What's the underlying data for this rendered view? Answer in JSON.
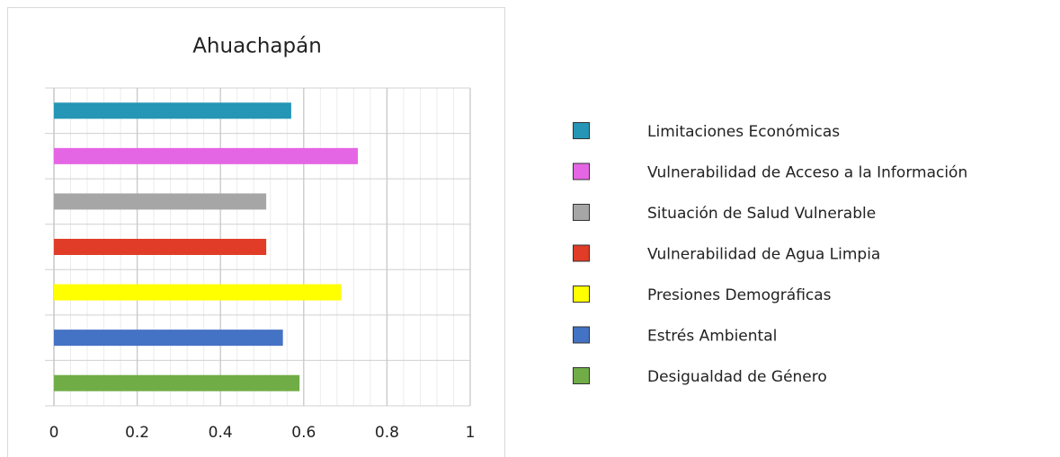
{
  "chart_data": {
    "type": "barh",
    "title": "Ahuachapán",
    "categories": [
      "Limitaciones Económicas",
      "Vulnerabilidad de Acceso a la Información",
      "Situación de Salud Vulnerable",
      "Vulnerabilidad de Agua Limpia",
      "Presiones Demográficas",
      "Estrés Ambiental",
      "Desigualdad de Género"
    ],
    "values": [
      0.57,
      0.73,
      0.51,
      0.51,
      0.69,
      0.55,
      0.59
    ],
    "colors": [
      "#2596b5",
      "#e466e4",
      "#a6a6a6",
      "#e03c27",
      "#ffff00",
      "#4472c4",
      "#70ad47"
    ],
    "xlim": [
      0,
      1
    ],
    "xticks": [
      0,
      0.2,
      0.4,
      0.6,
      0.8,
      1
    ],
    "grid": true,
    "minor_grid": true,
    "legend": "right"
  }
}
